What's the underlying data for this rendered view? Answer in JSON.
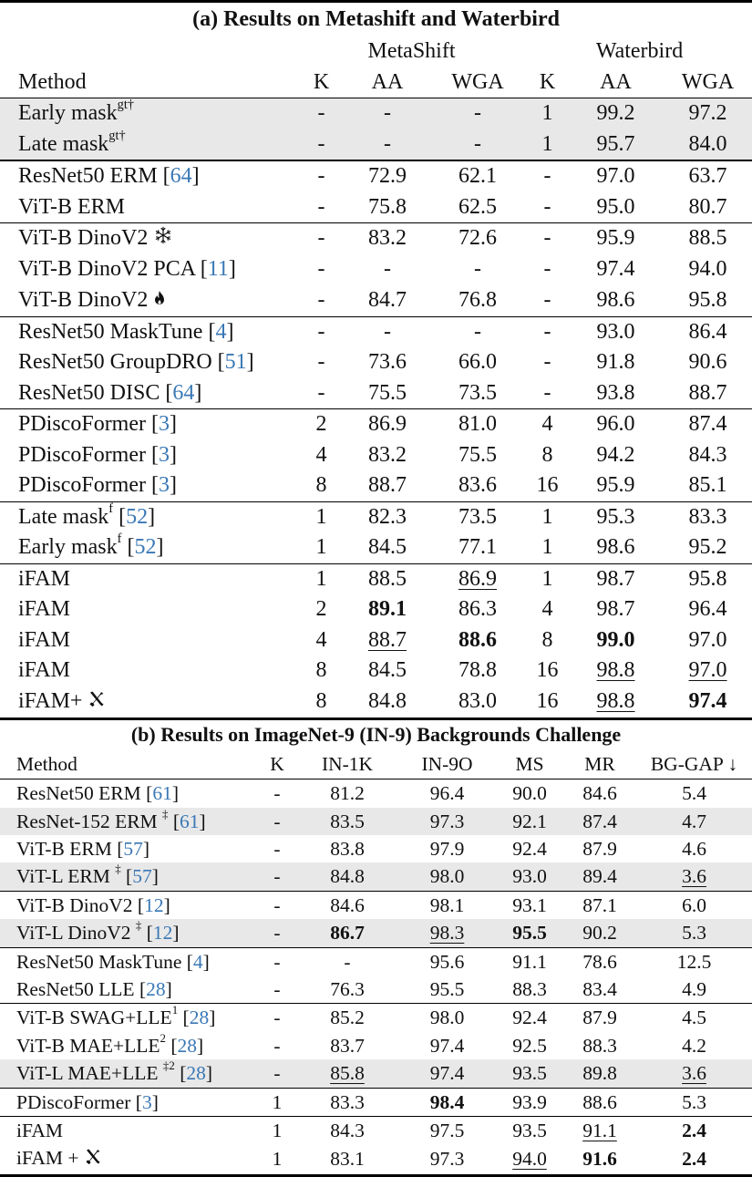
{
  "table_a": {
    "title": "(a) Results on Metashift and Waterbird",
    "group_headers": [
      "MetaShift",
      "Waterbird"
    ],
    "columns": [
      "Method",
      "K",
      "AA",
      "WGA",
      "K",
      "AA",
      "WGA"
    ],
    "rows": [
      {
        "method": "Early mask",
        "sup": "gt†",
        "ref": "",
        "icon": "",
        "values": [
          "-",
          "-",
          "-",
          "1",
          "99.2",
          "97.2"
        ],
        "style": [
          "",
          "",
          "",
          "",
          "",
          ""
        ],
        "shade": true,
        "section": 0
      },
      {
        "method": "Late mask",
        "sup": "gt†",
        "ref": "",
        "icon": "",
        "values": [
          "-",
          "-",
          "-",
          "1",
          "95.7",
          "84.0"
        ],
        "style": [
          "",
          "",
          "",
          "",
          "",
          ""
        ],
        "shade": true,
        "section": 0
      },
      {
        "method": "ResNet50 ERM",
        "sup": "",
        "ref": "64",
        "icon": "",
        "values": [
          "-",
          "72.9",
          "62.1",
          "-",
          "97.0",
          "63.7"
        ],
        "style": [
          "",
          "",
          "",
          "",
          "",
          ""
        ],
        "shade": false,
        "section": 1
      },
      {
        "method": "ViT-B ERM",
        "sup": "",
        "ref": "",
        "icon": "",
        "values": [
          "-",
          "75.8",
          "62.5",
          "-",
          "95.0",
          "80.7"
        ],
        "style": [
          "",
          "",
          "",
          "",
          "",
          ""
        ],
        "shade": false,
        "section": 1
      },
      {
        "method": "ViT-B DinoV2",
        "sup": "",
        "ref": "",
        "icon": "snowflake-icon",
        "values": [
          "-",
          "83.2",
          "72.6",
          "-",
          "95.9",
          "88.5"
        ],
        "style": [
          "",
          "",
          "",
          "",
          "",
          ""
        ],
        "shade": false,
        "section": 2
      },
      {
        "method": "ViT-B DinoV2 PCA",
        "sup": "",
        "ref": "11",
        "icon": "",
        "values": [
          "-",
          "-",
          "-",
          "-",
          "97.4",
          "94.0"
        ],
        "style": [
          "",
          "",
          "",
          "",
          "",
          ""
        ],
        "shade": false,
        "section": 2
      },
      {
        "method": "ViT-B DinoV2",
        "sup": "",
        "ref": "",
        "icon": "fire-icon",
        "values": [
          "-",
          "84.7",
          "76.8",
          "-",
          "98.6",
          "95.8"
        ],
        "style": [
          "",
          "",
          "",
          "",
          "",
          ""
        ],
        "shade": false,
        "section": 2
      },
      {
        "method": "ResNet50 MaskTune",
        "sup": "",
        "ref": "4",
        "icon": "",
        "values": [
          "-",
          "-",
          "-",
          "-",
          "93.0",
          "86.4"
        ],
        "style": [
          "",
          "",
          "",
          "",
          "",
          ""
        ],
        "shade": false,
        "section": 3
      },
      {
        "method": "ResNet50 GroupDRO",
        "sup": "",
        "ref": "51",
        "icon": "",
        "values": [
          "-",
          "73.6",
          "66.0",
          "-",
          "91.8",
          "90.6"
        ],
        "style": [
          "",
          "",
          "",
          "",
          "",
          ""
        ],
        "shade": false,
        "section": 3
      },
      {
        "method": "ResNet50 DISC",
        "sup": "",
        "ref": "64",
        "icon": "",
        "values": [
          "-",
          "75.5",
          "73.5",
          "-",
          "93.8",
          "88.7"
        ],
        "style": [
          "",
          "",
          "",
          "",
          "",
          ""
        ],
        "shade": false,
        "section": 3
      },
      {
        "method": "PDiscoFormer",
        "sup": "",
        "ref": "3",
        "icon": "",
        "values": [
          "2",
          "86.9",
          "81.0",
          "4",
          "96.0",
          "87.4"
        ],
        "style": [
          "",
          "",
          "",
          "",
          "",
          ""
        ],
        "shade": false,
        "section": 4
      },
      {
        "method": "PDiscoFormer",
        "sup": "",
        "ref": "3",
        "icon": "",
        "values": [
          "4",
          "83.2",
          "75.5",
          "8",
          "94.2",
          "84.3"
        ],
        "style": [
          "",
          "",
          "",
          "",
          "",
          ""
        ],
        "shade": false,
        "section": 4
      },
      {
        "method": "PDiscoFormer",
        "sup": "",
        "ref": "3",
        "icon": "",
        "values": [
          "8",
          "88.7",
          "83.6",
          "16",
          "95.9",
          "85.1"
        ],
        "style": [
          "",
          "",
          "",
          "",
          "",
          ""
        ],
        "shade": false,
        "section": 4
      },
      {
        "method": "Late mask",
        "sup": "f",
        "ref": "52",
        "icon": "",
        "values": [
          "1",
          "82.3",
          "73.5",
          "1",
          "95.3",
          "83.3"
        ],
        "style": [
          "",
          "",
          "",
          "",
          "",
          ""
        ],
        "shade": false,
        "section": 5
      },
      {
        "method": "Early mask",
        "sup": "f",
        "ref": "52",
        "icon": "",
        "values": [
          "1",
          "84.5",
          "77.1",
          "1",
          "98.6",
          "95.2"
        ],
        "style": [
          "",
          "",
          "",
          "",
          "",
          ""
        ],
        "shade": false,
        "section": 5
      },
      {
        "method": "iFAM",
        "sup": "",
        "ref": "",
        "icon": "",
        "values": [
          "1",
          "88.5",
          "86.9",
          "1",
          "98.7",
          "95.8"
        ],
        "style": [
          "",
          "",
          "u",
          "",
          "",
          ""
        ],
        "shade": false,
        "section": 6
      },
      {
        "method": "iFAM",
        "sup": "",
        "ref": "",
        "icon": "",
        "values": [
          "2",
          "89.1",
          "86.3",
          "4",
          "98.7",
          "96.4"
        ],
        "style": [
          "",
          "b",
          "",
          "",
          "",
          ""
        ],
        "shade": false,
        "section": 6
      },
      {
        "method": "iFAM",
        "sup": "",
        "ref": "",
        "icon": "",
        "values": [
          "4",
          "88.7",
          "88.6",
          "8",
          "99.0",
          "97.0"
        ],
        "style": [
          "",
          "u",
          "b",
          "",
          "b",
          ""
        ],
        "shade": false,
        "section": 6
      },
      {
        "method": "iFAM",
        "sup": "",
        "ref": "",
        "icon": "",
        "values": [
          "8",
          "84.5",
          "78.8",
          "16",
          "98.8",
          "97.0"
        ],
        "style": [
          "",
          "",
          "",
          "",
          "u",
          "u"
        ],
        "shade": false,
        "section": 6
      },
      {
        "method": "iFAM+",
        "sup": "",
        "ref": "",
        "icon": "tools-icon",
        "values": [
          "8",
          "84.8",
          "83.0",
          "16",
          "98.8",
          "97.4"
        ],
        "style": [
          "",
          "",
          "",
          "",
          "u",
          "b"
        ],
        "shade": false,
        "section": 6
      }
    ]
  },
  "table_b": {
    "title": "(b) Results on ImageNet-9 (IN-9) Backgrounds Challenge",
    "columns": [
      "Method",
      "K",
      "IN-1K",
      "IN-9O",
      "MS",
      "MR",
      "BG-GAP ↓"
    ],
    "rows": [
      {
        "method": "ResNet50 ERM",
        "sup": "",
        "ref": "61",
        "icon": "",
        "values": [
          "-",
          "81.2",
          "96.4",
          "90.0",
          "84.6",
          "5.4"
        ],
        "style": [
          "",
          "",
          "",
          "",
          "",
          ""
        ],
        "shade": false,
        "section": 0
      },
      {
        "method": "ResNet-152 ERM ",
        "sup": "‡",
        "ref": "61",
        "icon": "",
        "values": [
          "-",
          "83.5",
          "97.3",
          "92.1",
          "87.4",
          "4.7"
        ],
        "style": [
          "",
          "",
          "",
          "",
          "",
          ""
        ],
        "shade": true,
        "section": 0
      },
      {
        "method": "ViT-B ERM",
        "sup": "",
        "ref": "57",
        "icon": "",
        "values": [
          "-",
          "83.8",
          "97.9",
          "92.4",
          "87.9",
          "4.6"
        ],
        "style": [
          "",
          "",
          "",
          "",
          "",
          ""
        ],
        "shade": false,
        "section": 0
      },
      {
        "method": "ViT-L ERM ",
        "sup": "‡",
        "ref": "57",
        "icon": "",
        "values": [
          "-",
          "84.8",
          "98.0",
          "93.0",
          "89.4",
          "3.6"
        ],
        "style": [
          "",
          "",
          "",
          "",
          "",
          "u"
        ],
        "shade": true,
        "section": 0
      },
      {
        "method": "ViT-B DinoV2",
        "sup": "",
        "ref": "12",
        "icon": "",
        "values": [
          "-",
          "84.6",
          "98.1",
          "93.1",
          "87.1",
          "6.0"
        ],
        "style": [
          "",
          "",
          "",
          "",
          "",
          ""
        ],
        "shade": false,
        "section": 1
      },
      {
        "method": "ViT-L DinoV2 ",
        "sup": "‡",
        "ref": "12",
        "icon": "",
        "values": [
          "-",
          "86.7",
          "98.3",
          "95.5",
          "90.2",
          "5.3"
        ],
        "style": [
          "",
          "b",
          "u",
          "b",
          "",
          ""
        ],
        "shade": true,
        "section": 1
      },
      {
        "method": "ResNet50 MaskTune",
        "sup": "",
        "ref": "4",
        "icon": "",
        "values": [
          "-",
          "-",
          "95.6",
          "91.1",
          "78.6",
          "12.5"
        ],
        "style": [
          "",
          "",
          "",
          "",
          "",
          ""
        ],
        "shade": false,
        "section": 2
      },
      {
        "method": "ResNet50 LLE",
        "sup": "",
        "ref": "28",
        "icon": "",
        "values": [
          "-",
          "76.3",
          "95.5",
          "88.3",
          "83.4",
          "4.9"
        ],
        "style": [
          "",
          "",
          "",
          "",
          "",
          ""
        ],
        "shade": false,
        "section": 2
      },
      {
        "method": "ViT-B SWAG+LLE",
        "sup": "1",
        "ref": "28",
        "icon": "",
        "values": [
          "-",
          "85.2",
          "98.0",
          "92.4",
          "87.9",
          "4.5"
        ],
        "style": [
          "",
          "",
          "",
          "",
          "",
          ""
        ],
        "shade": false,
        "section": 3
      },
      {
        "method": "ViT-B MAE+LLE",
        "sup": "2",
        "ref": "28",
        "icon": "",
        "values": [
          "-",
          "83.7",
          "97.4",
          "92.5",
          "88.3",
          "4.2"
        ],
        "style": [
          "",
          "",
          "",
          "",
          "",
          ""
        ],
        "shade": false,
        "section": 3
      },
      {
        "method": "ViT-L MAE+LLE ",
        "sup": "‡2",
        "ref": "28",
        "icon": "",
        "values": [
          "-",
          "85.8",
          "97.4",
          "93.5",
          "89.8",
          "3.6"
        ],
        "style": [
          "",
          "u",
          "",
          "",
          "",
          "u"
        ],
        "shade": true,
        "section": 3
      },
      {
        "method": "PDiscoFormer",
        "sup": "",
        "ref": "3",
        "icon": "",
        "values": [
          "1",
          "83.3",
          "98.4",
          "93.9",
          "88.6",
          "5.3"
        ],
        "style": [
          "",
          "",
          "b",
          "",
          "",
          ""
        ],
        "shade": false,
        "section": 4
      },
      {
        "method": "iFAM",
        "sup": "",
        "ref": "",
        "icon": "",
        "values": [
          "1",
          "84.3",
          "97.5",
          "93.5",
          "91.1",
          "2.4"
        ],
        "style": [
          "",
          "",
          "",
          "",
          "u",
          "b"
        ],
        "shade": false,
        "section": 5
      },
      {
        "method": "iFAM + ",
        "sup": "",
        "ref": "",
        "icon": "tools-icon",
        "values": [
          "1",
          "83.1",
          "97.3",
          "94.0",
          "91.6",
          "2.4"
        ],
        "style": [
          "",
          "",
          "",
          "u",
          "b",
          "b"
        ],
        "shade": false,
        "section": 5
      }
    ]
  },
  "colors": {
    "shade": "#e8e8e8",
    "citation": "#3a78b5",
    "text": "#111111"
  }
}
